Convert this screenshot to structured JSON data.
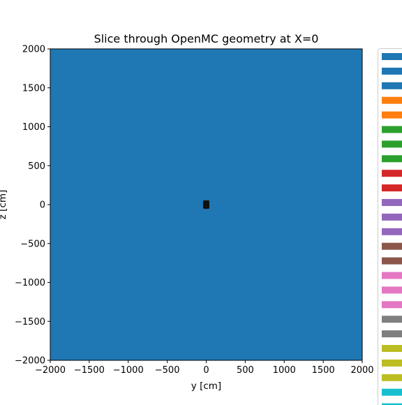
{
  "chart_data": {
    "type": "heatmap",
    "title": "Slice through OpenMC geometry at X=0",
    "xlabel": "y [cm]",
    "ylabel": "z [cm]",
    "xlim": [
      -2000,
      2000
    ],
    "ylim": [
      -2000,
      2000
    ],
    "xticks": [
      -2000,
      -1500,
      -1000,
      -500,
      0,
      500,
      1000,
      1500,
      2000
    ],
    "yticks": [
      2000,
      1500,
      1000,
      500,
      0,
      -500,
      -1000,
      -1500,
      -2000
    ],
    "x_tick_labels": [
      "−2000",
      "−1500",
      "−1000",
      "−500",
      "0",
      "500",
      "1000",
      "1500",
      "2000"
    ],
    "y_tick_labels": [
      "2000",
      "1500",
      "1000",
      "500",
      "0",
      "−500",
      "−1000",
      "−1500",
      "−2000"
    ],
    "grid": false,
    "legend_placement": "right, outside plot area (cut off)",
    "background_region": {
      "color": "#1f77b4",
      "y_range": [
        -2000,
        2000
      ],
      "z_range": [
        -2000,
        2000
      ]
    },
    "central_feature": {
      "color": "#111111",
      "y_center": 0,
      "z_center": 0,
      "y_half_width": 40,
      "z_half_height": 55
    },
    "legend_colors": [
      "#1f77b4",
      "#1f77b4",
      "#1f77b4",
      "#ff7f0e",
      "#ff7f0e",
      "#2ca02c",
      "#2ca02c",
      "#2ca02c",
      "#d62728",
      "#d62728",
      "#9467bd",
      "#9467bd",
      "#9467bd",
      "#8c564b",
      "#8c564b",
      "#e377c2",
      "#e377c2",
      "#e377c2",
      "#7f7f7f",
      "#7f7f7f",
      "#bcbd22",
      "#bcbd22",
      "#bcbd22",
      "#17becf",
      "#17becf"
    ]
  }
}
